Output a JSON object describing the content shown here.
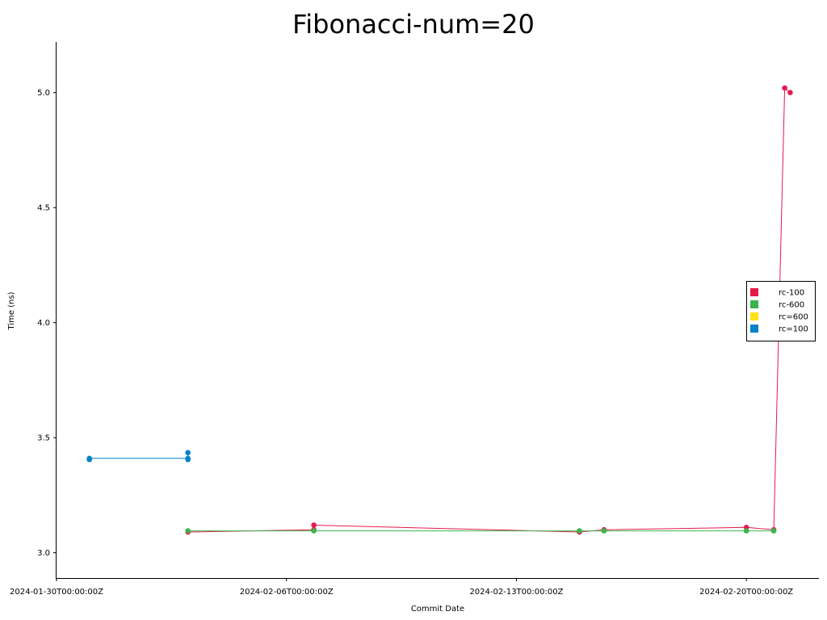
{
  "chart_data": {
    "type": "line",
    "title": "Fibonacci-num=20",
    "xlabel": "Commit Date",
    "ylabel": "Time (ns)",
    "x_ticks": [
      "2024-01-30T00:00:00Z",
      "2024-02-06T00:00:00Z",
      "2024-02-13T00:00:00Z",
      "2024-02-20T00:00:00Z"
    ],
    "y_ticks": [
      "3.0",
      "3.5",
      "4.0",
      "4.5",
      "5.0"
    ],
    "xlim": [
      "2024-01-30T00:00:00Z",
      "2024-02-22T05:00:00Z"
    ],
    "ylim": [
      2.89,
      5.22
    ],
    "grid": false,
    "legend_position": "right",
    "series": [
      {
        "name": "rc-100",
        "color": "#e6194b",
        "points": [
          {
            "x": "2024-02-03T00:00:00Z",
            "y": 3.09
          },
          {
            "x": "2024-02-06T20:00:00Z",
            "y": 3.1
          },
          {
            "x": "2024-02-06T20:00:00Z",
            "y": 3.12
          },
          {
            "x": "2024-02-14T22:00:00Z",
            "y": 3.09
          },
          {
            "x": "2024-02-15T16:00:00Z",
            "y": 3.1
          },
          {
            "x": "2024-02-20T00:00:00Z",
            "y": 3.11
          },
          {
            "x": "2024-02-20T20:00:00Z",
            "y": 3.1
          },
          {
            "x": "2024-02-21T04:00:00Z",
            "y": 5.02
          },
          {
            "x": "2024-02-21T08:00:00Z",
            "y": 5.0
          }
        ]
      },
      {
        "name": "rc-600",
        "color": "#3cb44b",
        "points": [
          {
            "x": "2024-02-03T00:00:00Z",
            "y": 3.095
          },
          {
            "x": "2024-02-06T20:00:00Z",
            "y": 3.095
          },
          {
            "x": "2024-02-14T22:00:00Z",
            "y": 3.095
          },
          {
            "x": "2024-02-15T16:00:00Z",
            "y": 3.095
          },
          {
            "x": "2024-02-20T00:00:00Z",
            "y": 3.095
          },
          {
            "x": "2024-02-20T20:00:00Z",
            "y": 3.095
          }
        ]
      },
      {
        "name": "rc=600",
        "color": "#ffe119",
        "points": []
      },
      {
        "name": "rc=100",
        "color": "#0082c8",
        "points": [
          {
            "x": "2024-01-31T00:00:00Z",
            "y": 3.405
          },
          {
            "x": "2024-01-31T00:00:00Z",
            "y": 3.41
          },
          {
            "x": "2024-02-03T00:00:00Z",
            "y": 3.41
          },
          {
            "x": "2024-02-03T00:00:00Z",
            "y": 3.405
          },
          {
            "x": "2024-02-03T00:00:00Z",
            "y": 3.435
          }
        ]
      }
    ]
  }
}
